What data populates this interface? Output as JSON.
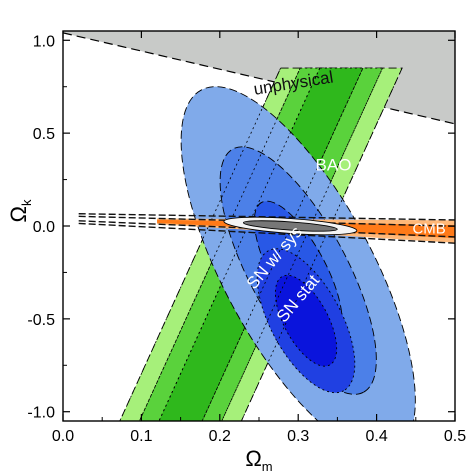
{
  "chart_data": {
    "type": "contour",
    "xlabel": "Ω",
    "xlabel_sub": "m",
    "ylabel": "Ω",
    "ylabel_sub": "k",
    "xlim": [
      0.0,
      0.5
    ],
    "ylim": [
      -1.05,
      1.05
    ],
    "xticks": [
      0.0,
      0.1,
      0.2,
      0.3,
      0.4,
      0.5
    ],
    "xtick_labels": [
      "0.0",
      "0.1",
      "0.2",
      "0.3",
      "0.4",
      "0.5"
    ],
    "yticks": [
      1.0,
      0.5,
      0.0,
      -0.5,
      -1.0
    ],
    "ytick_labels": [
      "1.0",
      "0.5",
      "0.0",
      "-0.5",
      "-1.0"
    ],
    "grid": false,
    "colors": {
      "unphysical": "#c8cac8",
      "bao": [
        "#a6f07a",
        "#5ad23c",
        "#2fb81c"
      ],
      "cmb": [
        "#ffb878",
        "#ff7a18"
      ],
      "sn_sys": [
        "#80aaea",
        "#4c80e8",
        "#2858e6"
      ],
      "sn_stat": [
        "#2040e2",
        "#0a14dc"
      ],
      "combined": [
        "#f4f4f4",
        "#777777"
      ]
    },
    "regions": {
      "unphysical": {
        "boundary": [
          [
            0.0,
            1.04
          ],
          [
            0.5,
            0.55
          ]
        ]
      },
      "bao": {
        "center_top": [
          0.355,
          0.85
        ],
        "center_bottom": [
          0.15,
          -1.05
        ],
        "widths": [
          0.155,
          0.105,
          0.055
        ]
      },
      "cmb": {
        "center_left": [
          0.02,
          0.04
        ],
        "center_right": [
          0.5,
          -0.03
        ],
        "visible_from": 0.12,
        "half_heights": [
          0.06,
          0.035
        ]
      },
      "sn_sys": {
        "center": [
          0.3,
          -0.24
        ],
        "major_axis_direction": [
          0.14,
          -1.1
        ],
        "major_axes": [
          0.98,
          0.66,
          0.37
        ],
        "minor_axes": [
          0.095,
          0.062,
          0.035
        ]
      },
      "sn_stat": {
        "center": [
          0.31,
          -0.51
        ],
        "major_axis_direction": [
          0.14,
          -1.1
        ],
        "major_axes": [
          0.38,
          0.24
        ],
        "minor_axes": [
          0.045,
          0.028
        ]
      },
      "combined": {
        "center": [
          0.29,
          0.0
        ],
        "half_widths": [
          0.085,
          0.06
        ],
        "half_heights": [
          0.04,
          0.022
        ]
      }
    },
    "annotations": [
      {
        "text": "unphysical",
        "x": 0.295,
        "y": 0.74,
        "rotation": -9,
        "style": "dark"
      },
      {
        "text": "BAO",
        "x": 0.345,
        "y": 0.3,
        "rotation": 0,
        "style": "white"
      },
      {
        "text": "CMB",
        "x": 0.467,
        "y": -0.04,
        "rotation": 0,
        "style": "small"
      },
      {
        "text": "SN w/ sys",
        "x": 0.275,
        "y": -0.19,
        "rotation": -50,
        "style": "white"
      },
      {
        "text": "SN stat",
        "x": 0.305,
        "y": -0.41,
        "rotation": -50,
        "style": "white"
      }
    ]
  }
}
